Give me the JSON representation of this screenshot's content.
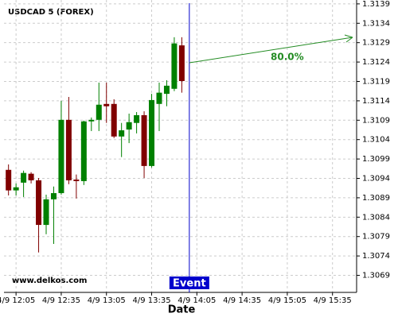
{
  "chart_data": {
    "type": "candlestick",
    "title": "USDCAD 5 (FOREX)",
    "x_label": "Date",
    "watermark": "www.delkos.com",
    "x": [
      "4/9 12:00",
      "4/9 12:05",
      "4/9 12:10",
      "4/9 12:15",
      "4/9 12:20",
      "4/9 12:25",
      "4/9 12:30",
      "4/9 12:35",
      "4/9 12:40",
      "4/9 12:45",
      "4/9 12:50",
      "4/9 12:55",
      "4/9 13:00",
      "4/9 13:05",
      "4/9 13:10",
      "4/9 13:15",
      "4/9 13:20",
      "4/9 13:25",
      "4/9 13:30",
      "4/9 13:35",
      "4/9 13:40",
      "4/9 13:45",
      "4/9 13:50",
      "4/9 13:55"
    ],
    "open": [
      1.30962,
      1.30909,
      1.30929,
      1.30952,
      1.30935,
      1.3082,
      1.30886,
      1.30902,
      1.31091,
      1.30937,
      1.30933,
      1.31087,
      1.31091,
      1.31132,
      1.31132,
      1.31048,
      1.31066,
      1.31083,
      1.31103,
      1.30972,
      1.31132,
      1.31158,
      1.31171,
      1.31283
    ],
    "high": [
      1.30976,
      1.30927,
      1.3096,
      1.30956,
      1.30941,
      1.30898,
      1.30919,
      1.3114,
      1.3115,
      1.3095,
      1.31089,
      1.31097,
      1.31187,
      1.31187,
      1.31144,
      1.31083,
      1.31107,
      1.31111,
      1.31113,
      1.31158,
      1.31187,
      1.31193,
      1.31304,
      1.31304
    ],
    "low": [
      1.30896,
      1.30896,
      1.30892,
      1.30927,
      1.30749,
      1.30796,
      1.30771,
      1.30898,
      1.30925,
      1.30888,
      1.30923,
      1.31062,
      1.31062,
      1.31083,
      1.31044,
      1.30995,
      1.31031,
      1.31056,
      1.30941,
      1.30968,
      1.31062,
      1.31126,
      1.31165,
      1.31161
    ],
    "close": [
      1.30909,
      1.30917,
      1.30954,
      1.30935,
      1.3082,
      1.30886,
      1.30902,
      1.31091,
      1.30935,
      1.30933,
      1.31087,
      1.31091,
      1.3113,
      1.31126,
      1.31048,
      1.31064,
      1.31085,
      1.31103,
      1.30972,
      1.31142,
      1.31161,
      1.31179,
      1.31288,
      1.31191
    ],
    "up_color": "#008000",
    "down_color": "#800000",
    "xlim": [
      "4/9 11:57",
      "4/9 15:51"
    ],
    "xticks": [
      "4/9 12:05",
      "4/9 12:35",
      "4/9 13:05",
      "4/9 13:35",
      "4/9 14:05",
      "4/9 14:35",
      "4/9 15:05",
      "4/9 15:35"
    ],
    "ylim": [
      1.30646,
      1.314
    ],
    "yticks": [
      1.3069,
      1.3074,
      1.3079,
      1.3084,
      1.3089,
      1.3094,
      1.3099,
      1.3104,
      1.3109,
      1.3114,
      1.3119,
      1.3124,
      1.3129,
      1.3134,
      1.3139
    ],
    "grid": true,
    "event": {
      "x": "4/9 14:00",
      "label": "Event",
      "color": "#0000cc"
    },
    "prediction": {
      "label": "80.0%",
      "color": "#228b22"
    }
  }
}
